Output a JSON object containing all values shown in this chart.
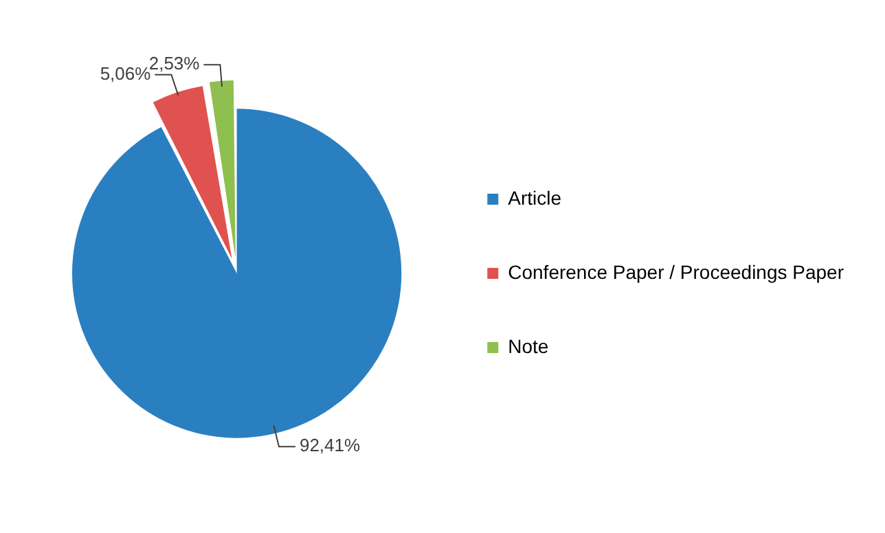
{
  "chart_data": {
    "type": "pie",
    "categories": [
      "Article",
      "Conference Paper / Proceedings Paper",
      "Note"
    ],
    "values": [
      92.41,
      5.06,
      2.53
    ],
    "colors": [
      "#2a7fc1",
      "#e0524f",
      "#8ebf4f"
    ],
    "value_labels": [
      "92,41%",
      "5,06%",
      "2,53%"
    ],
    "legend": "right"
  }
}
